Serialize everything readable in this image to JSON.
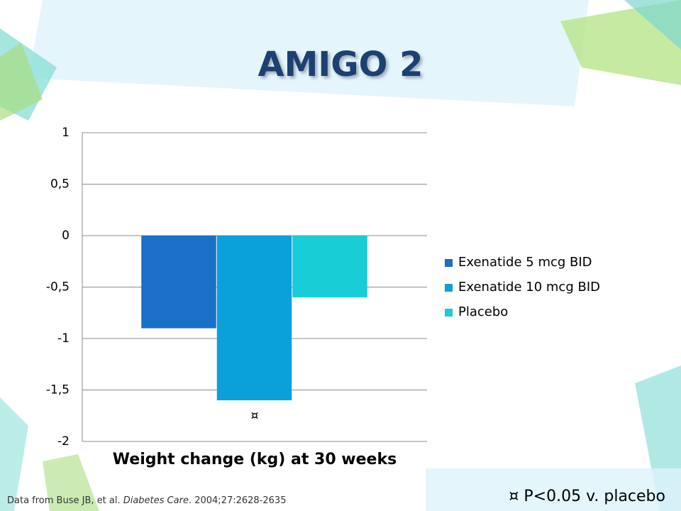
{
  "chart_data": {
    "type": "bar",
    "title": "AMIGO 2",
    "categories": [
      "Weight change (kg) at 30 weeks"
    ],
    "series": [
      {
        "name": "Exenatide 5 mcg BID",
        "color": "#1a6fc6",
        "values": [
          -0.9
        ]
      },
      {
        "name": "Exenatide 10 mcg BID",
        "color": "#0aa0da",
        "values": [
          -1.6
        ]
      },
      {
        "name": "Placebo",
        "color": "#19cdd6",
        "values": [
          -0.6
        ]
      }
    ],
    "ylim": [
      -2,
      1
    ],
    "yticks": [
      {
        "value": -2,
        "label": "-2"
      },
      {
        "value": -1.5,
        "label": "-1,5"
      },
      {
        "value": -1,
        "label": "-1"
      },
      {
        "value": -0.5,
        "label": "-0,5"
      },
      {
        "value": 0,
        "label": "0"
      },
      {
        "value": 0.5,
        "label": "0,5"
      },
      {
        "value": 1,
        "label": "1"
      }
    ],
    "grid": true,
    "legend": "right",
    "annotation": "¤",
    "footnote": "¤ P<0.05 v. placebo",
    "source": [
      "Data from Buse JB, et al. ",
      "Diabetes Care",
      ". 2004;27:2628-2635"
    ]
  }
}
